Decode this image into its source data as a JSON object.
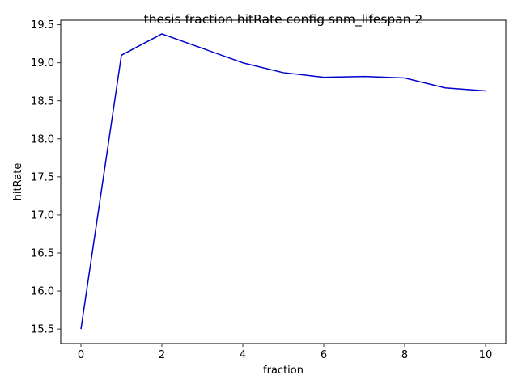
{
  "chart_data": {
    "type": "line",
    "title": "thesis fraction hitRate config snm_lifespan 2",
    "xlabel": "fraction",
    "ylabel": "hitRate",
    "xlim": [
      -0.5,
      10.5
    ],
    "ylim": [
      15.31,
      19.56
    ],
    "xticks": [
      0,
      2,
      4,
      6,
      8,
      10
    ],
    "xtick_labels": [
      "0",
      "2",
      "4",
      "6",
      "8",
      "10"
    ],
    "yticks": [
      15.5,
      16.0,
      16.5,
      17.0,
      17.5,
      18.0,
      18.5,
      19.0,
      19.5
    ],
    "ytick_labels": [
      "15.5",
      "16.0",
      "16.5",
      "17.0",
      "17.5",
      "18.0",
      "18.5",
      "19.0",
      "19.5"
    ],
    "grid": false,
    "series": [
      {
        "color": "#0000cc",
        "x": [
          0,
          1,
          2,
          3,
          4,
          5,
          6,
          7,
          8,
          9,
          10
        ],
        "y": [
          15.5,
          19.1,
          19.38,
          19.19,
          19.0,
          18.87,
          18.81,
          18.82,
          18.8,
          18.67,
          18.63
        ]
      }
    ]
  }
}
